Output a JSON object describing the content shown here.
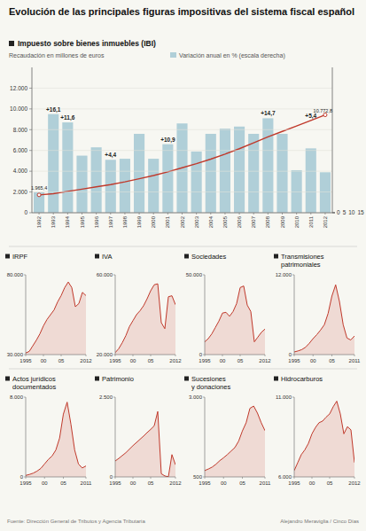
{
  "title": "Evolución de las principales figuras impositivas del sistema fiscal español",
  "source": "Fuente: Dirección General de Tributos y Agencia Tributaria",
  "credit": "Alejandro Meraviglia / Cinco Días",
  "chart_data": [
    {
      "type": "bar",
      "title": "Impuesto sobre bienes inmuebles (IBI)",
      "subtitle": "Recaudación en millones de euros",
      "categories": [
        "1992",
        "1993",
        "1994",
        "1995",
        "1996",
        "1997",
        "1998",
        "1999",
        "2000",
        "2001",
        "2002",
        "2003",
        "2004",
        "2005",
        "2006",
        "2007",
        "2008",
        "2009",
        "2010",
        "2011",
        "2012"
      ],
      "ylim": [
        0,
        14000
      ],
      "yticks": [
        0,
        {
          "value": 2000,
          "label": "2.000"
        },
        {
          "value": 4000,
          "label": "4.000"
        },
        {
          "value": 6000,
          "label": "6.000"
        },
        {
          "value": 8000,
          "label": "8.000"
        },
        {
          "value": 10000,
          "label": "10.000"
        },
        {
          "value": 12000,
          "label": "12.000"
        }
      ],
      "y2lim": [
        0,
        16000
      ],
      "y2ticks": [
        0,
        5,
        10,
        15
      ],
      "series": [
        {
          "name": "Variación anual en % (escala derecha)",
          "type": "bar",
          "color": "#b0cfd8",
          "values": [
            1965,
            9500,
            8700,
            5500,
            6300,
            5100,
            5200,
            7600,
            5200,
            6600,
            8600,
            5900,
            7600,
            8100,
            8300,
            7600,
            9100,
            7600,
            4100,
            6200,
            3900
          ],
          "annotations": [
            {
              "x": "1993",
              "label": "+16,1"
            },
            {
              "x": "1994",
              "label": "+11,6"
            },
            {
              "x": "1997",
              "label": "+4,4"
            },
            {
              "x": "2001",
              "label": "+10,9"
            },
            {
              "x": "2008",
              "label": "+14,7"
            },
            {
              "x": "2011",
              "label": "+5,4"
            }
          ]
        },
        {
          "type": "line",
          "axis": "y2",
          "color": "#c0392b",
          "values": [
            1965,
            2100,
            2350,
            2600,
            2850,
            3100,
            3400,
            3750,
            4100,
            4500,
            4950,
            5400,
            5900,
            6450,
            7050,
            7700,
            8350,
            8950,
            9550,
            10150,
            10773
          ],
          "annotations": [
            {
              "x": "1992",
              "label": "1.965,4"
            },
            {
              "x": "2012",
              "label": "10.772,8"
            }
          ]
        }
      ]
    },
    {
      "type": "area",
      "title": "IRPF",
      "color": "#c0392b",
      "x": [
        1995,
        1996,
        1997,
        1998,
        1999,
        2000,
        2001,
        2002,
        2003,
        2004,
        2005,
        2006,
        2007,
        2008,
        2009,
        2010,
        2011,
        2012
      ],
      "values": [
        31000,
        32000,
        35500,
        39000,
        43000,
        48000,
        52000,
        55000,
        58000,
        63000,
        67000,
        72000,
        75500,
        72000,
        60000,
        62000,
        69000,
        67000
      ],
      "xlim": [
        1995,
        2012
      ],
      "xticks": [
        1995,
        {
          "value": 2000,
          "label": "00"
        },
        {
          "value": 2005,
          "label": "05"
        },
        2012
      ],
      "ylim": [
        30000,
        80000
      ],
      "yticks": [
        {
          "value": 30000,
          "label": "30.000"
        },
        {
          "value": 80000,
          "label": "80.000"
        }
      ]
    },
    {
      "type": "area",
      "title": "IVA",
      "color": "#c0392b",
      "x": [
        1995,
        1996,
        1997,
        1998,
        1999,
        2000,
        2001,
        2002,
        2003,
        2004,
        2005,
        2006,
        2007,
        2008,
        2009,
        2010,
        2011,
        2012
      ],
      "values": [
        21000,
        23000,
        26000,
        29500,
        34000,
        37000,
        40000,
        42000,
        44500,
        48000,
        52000,
        55000,
        55500,
        36000,
        33000,
        49000,
        49500,
        45000
      ],
      "xlim": [
        1995,
        2012
      ],
      "xticks": [
        1995,
        {
          "value": 2000,
          "label": "00"
        },
        {
          "value": 2005,
          "label": "05"
        },
        2012
      ],
      "ylim": [
        20000,
        60000
      ],
      "yticks": [
        {
          "value": 20000,
          "label": "20.000"
        },
        {
          "value": 60000,
          "label": "60.000"
        }
      ]
    },
    {
      "type": "area",
      "title": "Sociedades",
      "color": "#c0392b",
      "x": [
        1995,
        1996,
        1997,
        1998,
        1999,
        2000,
        2001,
        2002,
        2003,
        2004,
        2005,
        2006,
        2007,
        2008,
        2009,
        2010,
        2011,
        2012
      ],
      "values": [
        8000,
        10000,
        13000,
        17000,
        21000,
        26000,
        26500,
        24000,
        27000,
        32000,
        42000,
        43000,
        31000,
        27000,
        8000,
        11000,
        14000,
        16000
      ],
      "xlim": [
        1995,
        2012
      ],
      "xticks": [
        1995,
        {
          "value": 2000,
          "label": "00"
        },
        {
          "value": 2005,
          "label": "05"
        },
        2012
      ],
      "ylim": [
        0,
        50000
      ],
      "yticks": [
        0,
        {
          "value": 50000,
          "label": "50.000"
        }
      ]
    },
    {
      "type": "area",
      "title": "Transmisiones\npatrimoniales",
      "color": "#c0392b",
      "x": [
        1995,
        1996,
        1997,
        1998,
        1999,
        2000,
        2001,
        2002,
        2003,
        2004,
        2005,
        2006,
        2007,
        2008,
        2009,
        2010,
        2011
      ],
      "values": [
        400,
        550,
        750,
        1100,
        1700,
        2400,
        3000,
        3700,
        4500,
        6200,
        8800,
        10500,
        8000,
        4500,
        2500,
        2200,
        2800
      ],
      "xlim": [
        1995,
        2011
      ],
      "xticks": [
        1995,
        {
          "value": 2000,
          "label": "00"
        },
        {
          "value": 2005,
          "label": "05"
        },
        2011
      ],
      "ylim": [
        0,
        12000
      ],
      "yticks": [
        0,
        {
          "value": 12000,
          "label": "12.000"
        }
      ]
    },
    {
      "type": "area",
      "title": "Actos jurídicos\ndocumentados",
      "color": "#c0392b",
      "x": [
        1995,
        1996,
        1997,
        1998,
        1999,
        2000,
        2001,
        2002,
        2003,
        2004,
        2005,
        2006,
        2007,
        2008,
        2009,
        2010,
        2011
      ],
      "values": [
        150,
        250,
        380,
        580,
        850,
        1300,
        1750,
        2100,
        2700,
        3900,
        6300,
        7500,
        5300,
        2700,
        1300,
        900,
        1100
      ],
      "xlim": [
        1995,
        2011
      ],
      "xticks": [
        1995,
        {
          "value": 2000,
          "label": "00"
        },
        {
          "value": 2005,
          "label": "05"
        },
        2011
      ],
      "ylim": [
        0,
        8000
      ],
      "yticks": [
        0,
        {
          "value": 8000,
          "label": "8.000"
        }
      ]
    },
    {
      "type": "area",
      "title": "Patrimonio",
      "color": "#c0392b",
      "x": [
        1995,
        1996,
        1997,
        1998,
        1999,
        2000,
        2001,
        2002,
        2003,
        2004,
        2005,
        2006,
        2007,
        2008,
        2009,
        2010,
        2011,
        2012
      ],
      "values": [
        500,
        580,
        670,
        760,
        870,
        980,
        1080,
        1180,
        1280,
        1390,
        1490,
        1600,
        2050,
        100,
        30,
        5,
        700,
        380
      ],
      "xlim": [
        1995,
        2012
      ],
      "xticks": [
        1995,
        {
          "value": 2000,
          "label": "00"
        },
        {
          "value": 2005,
          "label": "05"
        },
        2012
      ],
      "ylim": [
        0,
        2500
      ],
      "yticks": [
        0,
        {
          "value": 2500,
          "label": "2.500"
        }
      ]
    },
    {
      "type": "area",
      "title": "Sucesiones\ny donaciones",
      "color": "#c0392b",
      "x": [
        1995,
        1996,
        1997,
        1998,
        1999,
        2000,
        2001,
        2002,
        2003,
        2004,
        2005,
        2006,
        2007,
        2008,
        2009,
        2010,
        2011
      ],
      "values": [
        700,
        750,
        810,
        900,
        1010,
        1100,
        1200,
        1310,
        1420,
        1620,
        1940,
        2200,
        2650,
        2720,
        2500,
        2200,
        1950
      ],
      "xlim": [
        1995,
        2011
      ],
      "xticks": [
        1995,
        {
          "value": 2000,
          "label": "00"
        },
        {
          "value": 2005,
          "label": "05"
        },
        2011
      ],
      "ylim": [
        500,
        3000
      ],
      "yticks": [
        500,
        {
          "value": 3000,
          "label": "3.000"
        }
      ]
    },
    {
      "type": "area",
      "title": "Hidrocarburos",
      "color": "#c0392b",
      "x": [
        1995,
        1996,
        1997,
        1998,
        1999,
        2000,
        2001,
        2002,
        2003,
        2004,
        2005,
        2006,
        2007,
        2008,
        2009,
        2010,
        2011,
        2012
      ],
      "values": [
        6400,
        6900,
        7400,
        7700,
        8100,
        8700,
        9100,
        9400,
        9500,
        9750,
        9950,
        10400,
        10750,
        9950,
        8700,
        9150,
        8950,
        6900
      ],
      "xlim": [
        1995,
        2012
      ],
      "xticks": [
        1995,
        {
          "value": 2000,
          "label": "00"
        },
        {
          "value": 2005,
          "label": "05"
        },
        2012
      ],
      "ylim": [
        6000,
        11000
      ],
      "yticks": [
        {
          "value": 6000,
          "label": "6.000"
        },
        {
          "value": 11000,
          "label": "11.000"
        }
      ]
    }
  ]
}
